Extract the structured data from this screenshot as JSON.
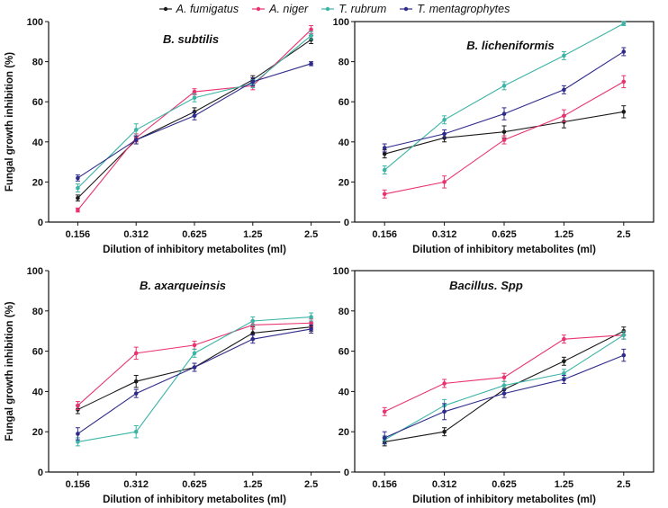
{
  "legend": {
    "items": [
      {
        "name": "A. fumigatus",
        "color": "#1a1a1a"
      },
      {
        "name": "A. niger",
        "color": "#e8336f"
      },
      {
        "name": "T. rubrum",
        "color": "#3cb4a6"
      },
      {
        "name": "T. mentagrophytes",
        "color": "#2f2b8a"
      }
    ]
  },
  "chart_data": [
    {
      "type": "line",
      "title": "B. subtilis",
      "categories": [
        "0.156",
        "0.312",
        "0.625",
        "1.25",
        "2.5"
      ],
      "xlabel": "Dilution of inhibitory metabolites (ml)",
      "ylabel": "Fungal growth inhibition (%)",
      "ylim": [
        0,
        100
      ],
      "yticks": [
        "0",
        "20",
        "40",
        "60",
        "80",
        "100"
      ],
      "series": [
        {
          "name": "A. fumigatus",
          "values": [
            12,
            41,
            55,
            71,
            91
          ],
          "errors": [
            1.5,
            2,
            2,
            2,
            2
          ]
        },
        {
          "name": "A. niger",
          "values": [
            6,
            42,
            65,
            68,
            96
          ],
          "errors": [
            1,
            2,
            1.5,
            2,
            2
          ]
        },
        {
          "name": "T. rubrum",
          "values": [
            17,
            46,
            62,
            69,
            93
          ],
          "errors": [
            2,
            3,
            2,
            2,
            2
          ]
        },
        {
          "name": "T. mentagrophytes",
          "values": [
            22,
            41,
            53,
            70,
            79
          ],
          "errors": [
            1.5,
            2,
            2,
            2,
            1
          ]
        }
      ]
    },
    {
      "type": "line",
      "title": "B. licheniformis",
      "categories": [
        "0.156",
        "0.312",
        "0.625",
        "1.25",
        "2.5"
      ],
      "xlabel": "Dilution of inhibitory metabolites (ml)",
      "ylabel": "",
      "ylim": [
        0,
        100
      ],
      "yticks": [
        "0",
        "20",
        "40",
        "60",
        "80",
        "100"
      ],
      "series": [
        {
          "name": "A. fumigatus",
          "values": [
            34,
            42,
            45,
            50,
            55
          ],
          "errors": [
            2,
            2,
            3,
            3,
            3
          ]
        },
        {
          "name": "A. niger",
          "values": [
            14,
            20,
            41,
            53,
            70
          ],
          "errors": [
            2,
            3,
            2,
            3,
            3
          ]
        },
        {
          "name": "T. rubrum",
          "values": [
            26,
            51,
            68,
            83,
            99
          ],
          "errors": [
            2,
            2,
            2,
            2,
            1
          ]
        },
        {
          "name": "T. mentagrophytes",
          "values": [
            37,
            44,
            54,
            66,
            85
          ],
          "errors": [
            2,
            2,
            3,
            2,
            2
          ]
        }
      ]
    },
    {
      "type": "line",
      "title": "B. axarqueinsis",
      "categories": [
        "0.156",
        "0.312",
        "0.625",
        "1.25",
        "2.5"
      ],
      "xlabel": "Dilution of inhibitory metabolites (ml)",
      "ylabel": "Fungal growth inhibition (%)",
      "ylim": [
        0,
        100
      ],
      "yticks": [
        "0",
        "20",
        "40",
        "60",
        "80",
        "100"
      ],
      "series": [
        {
          "name": "A. fumigatus",
          "values": [
            31,
            45,
            52,
            69,
            72
          ],
          "errors": [
            2,
            3,
            2,
            3,
            2
          ]
        },
        {
          "name": "A. niger",
          "values": [
            33,
            59,
            63,
            73,
            74
          ],
          "errors": [
            2,
            3,
            2,
            2,
            2
          ]
        },
        {
          "name": "T. rubrum",
          "values": [
            15,
            20,
            59,
            75,
            77
          ],
          "errors": [
            2,
            3,
            2,
            2,
            2
          ]
        },
        {
          "name": "T. mentagrophytes",
          "values": [
            19,
            39,
            52,
            66,
            71
          ],
          "errors": [
            3,
            2,
            2,
            2,
            2
          ]
        }
      ]
    },
    {
      "type": "line",
      "title": "Bacillus. Spp",
      "categories": [
        "0.156",
        "0.312",
        "0.625",
        "1.25",
        "2.5"
      ],
      "xlabel": "Dilution of inhibitory metabolites (ml)",
      "ylabel": "",
      "ylim": [
        0,
        100
      ],
      "yticks": [
        "0",
        "20",
        "40",
        "60",
        "80",
        "100"
      ],
      "series": [
        {
          "name": "A. fumigatus",
          "values": [
            15,
            20,
            41,
            55,
            70
          ],
          "errors": [
            2,
            2,
            2,
            2,
            2
          ]
        },
        {
          "name": "A. niger",
          "values": [
            30,
            44,
            47,
            66,
            68
          ],
          "errors": [
            2,
            2,
            2,
            2,
            2
          ]
        },
        {
          "name": "T. rubrum",
          "values": [
            16,
            33,
            43,
            49,
            68
          ],
          "errors": [
            2,
            3,
            2,
            2,
            2
          ]
        },
        {
          "name": "T. mentagrophytes",
          "values": [
            17,
            30,
            39,
            46,
            58
          ],
          "errors": [
            3,
            4,
            2,
            2,
            3
          ]
        }
      ]
    }
  ]
}
